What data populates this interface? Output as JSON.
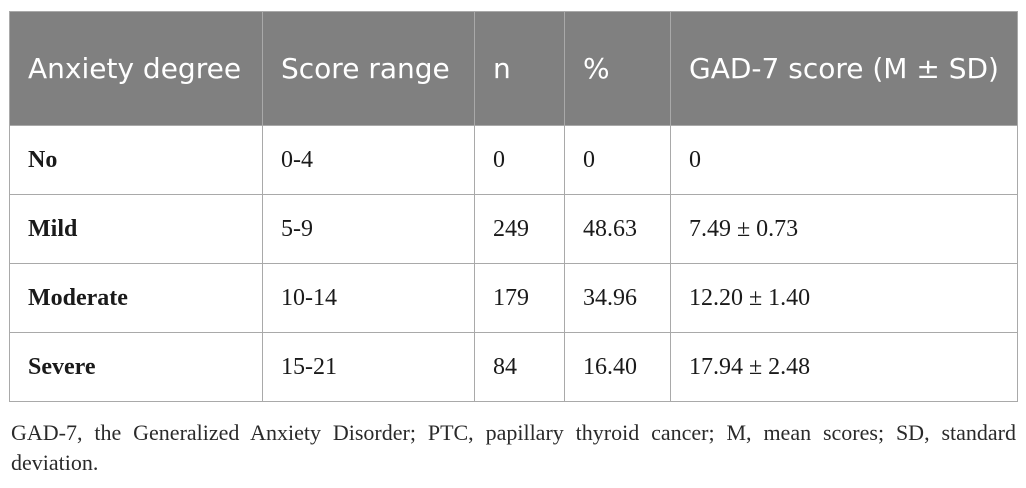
{
  "table": {
    "columns": [
      "Anxiety degree",
      "Score range",
      "n",
      "%",
      "GAD-7 score (M ± SD)"
    ],
    "rows": [
      {
        "degree": "No",
        "range": "0-4",
        "n": "0",
        "percent": "0",
        "score": "0"
      },
      {
        "degree": "Mild",
        "range": "5-9",
        "n": "249",
        "percent": "48.63",
        "score": "7.49 ± 0.73"
      },
      {
        "degree": "Moderate",
        "range": "10-14",
        "n": "179",
        "percent": "34.96",
        "score": "12.20 ± 1.40"
      },
      {
        "degree": "Severe",
        "range": "15-21",
        "n": "84",
        "percent": "16.40",
        "score": "17.94 ± 2.48"
      }
    ]
  },
  "footnote": "GAD-7, the Generalized Anxiety Disorder; PTC, papillary thyroid cancer; M, mean scores; SD, standard deviation."
}
